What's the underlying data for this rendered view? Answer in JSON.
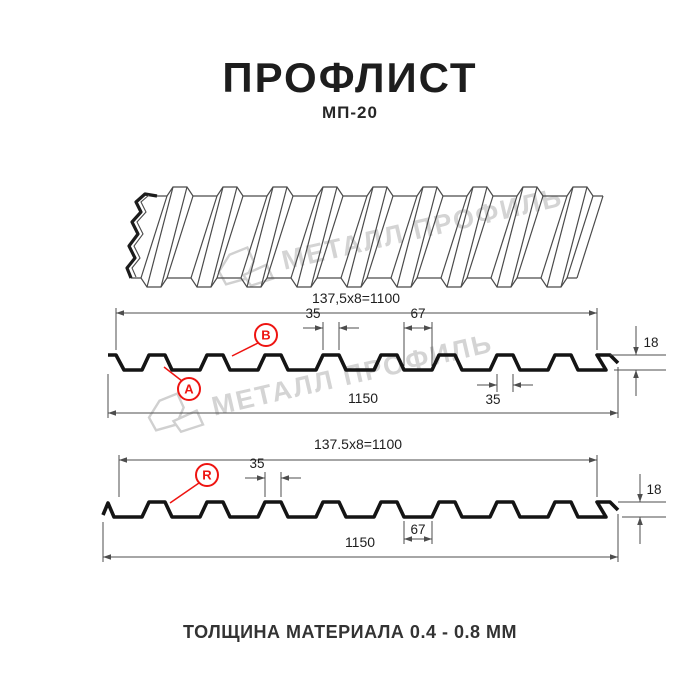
{
  "header": {
    "title": "ПРОФЛИСТ",
    "subtitle": "МП-20"
  },
  "watermark": {
    "text": "МЕТАЛЛ ПРОФИЛЬ"
  },
  "drawings": {
    "top": {
      "dim_pitch": "137,5x8=1100",
      "dim_rib_width": "35",
      "dim_valley_width": "67",
      "dim_height": "18",
      "dim_rib_width_bottom": "35",
      "dim_overall_width": "1150",
      "label_bottom_face": "A",
      "label_top_face": "B"
    },
    "bottom": {
      "dim_pitch": "137.5x8=1100",
      "dim_rib_width": "35",
      "dim_valley_width": "67",
      "dim_height": "18",
      "dim_overall_width": "1150",
      "label_face": "R"
    }
  },
  "footer": {
    "caption": "ТОЛЩИНА МАТЕРИАЛА 0.4 - 0.8 ММ"
  },
  "colors": {
    "accent": "#ee1411",
    "line": "#4d4d4d",
    "profile": "#141414",
    "watermark": "#d4d4d4"
  }
}
